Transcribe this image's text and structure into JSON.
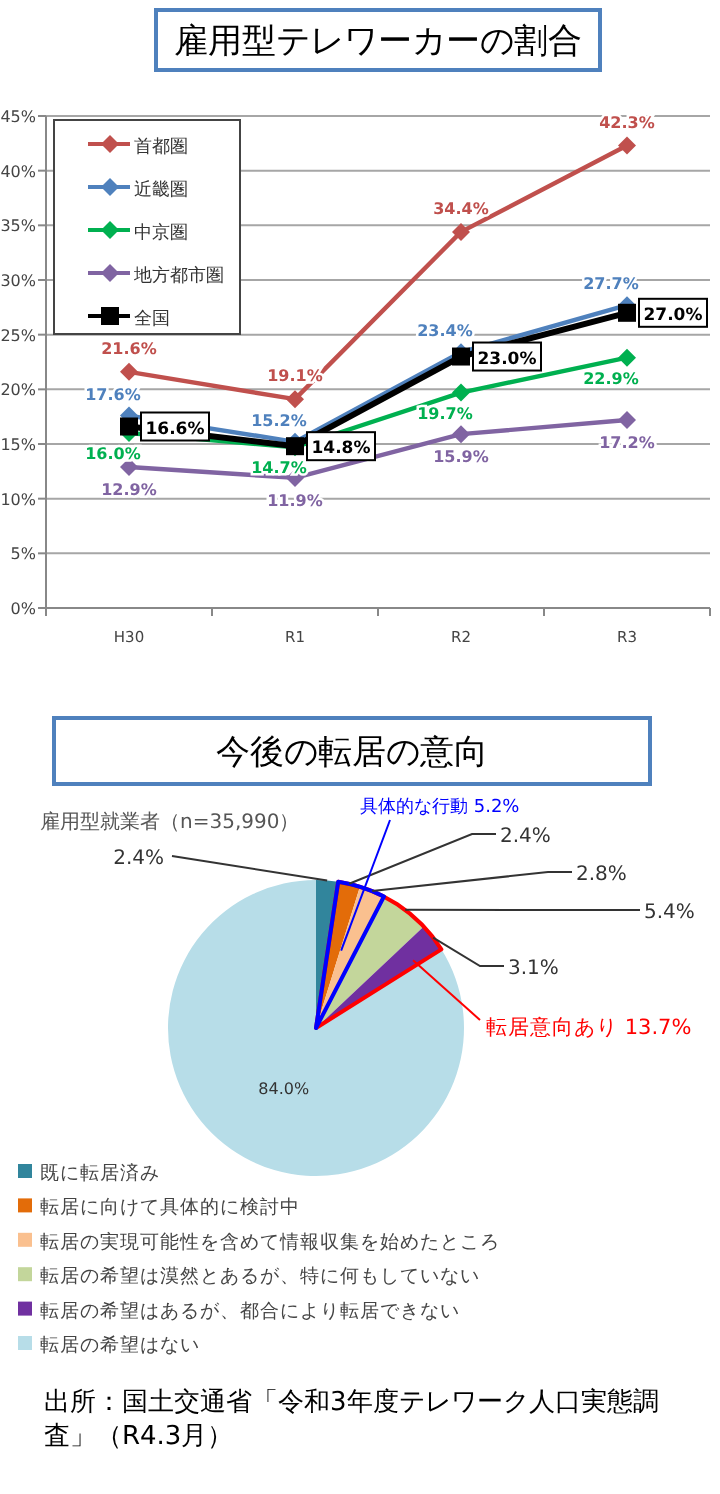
{
  "chart_data": [
    {
      "type": "line",
      "title": "雇用型テレワーカーの割合",
      "categories": [
        "H30",
        "R1",
        "R2",
        "R3"
      ],
      "series": [
        {
          "name": "首都圏",
          "color": "#c0504d",
          "marker": "diamond",
          "values": [
            21.6,
            19.1,
            34.4,
            42.3
          ],
          "value_labels": [
            "21.6%",
            "19.1%",
            "34.4%",
            "42.3%"
          ]
        },
        {
          "name": "近畿圏",
          "color": "#4f81bd",
          "marker": "diamond",
          "values": [
            17.6,
            15.2,
            23.4,
            27.7
          ],
          "value_labels": [
            "17.6%",
            "15.2%",
            "23.4%",
            "27.7%"
          ]
        },
        {
          "name": "中京圏",
          "color": "#00b050",
          "marker": "diamond",
          "values": [
            16.0,
            14.7,
            19.7,
            22.9
          ],
          "value_labels": [
            "16.0%",
            "14.7%",
            "19.7%",
            "22.9%"
          ]
        },
        {
          "name": "地方都市圏",
          "color": "#8064a2",
          "marker": "diamond",
          "values": [
            12.9,
            11.9,
            15.9,
            17.2
          ],
          "value_labels": [
            "12.9%",
            "11.9%",
            "15.9%",
            "17.2%"
          ]
        },
        {
          "name": "全国",
          "color": "#000000",
          "marker": "square",
          "values": [
            16.6,
            14.8,
            23.0,
            27.0
          ],
          "value_labels": [
            "16.6%",
            "14.8%",
            "23.0%",
            "27.0%"
          ]
        }
      ],
      "ylim": [
        0,
        45
      ],
      "yticks": [
        {
          "value": 0,
          "label": "0%"
        },
        {
          "value": 5,
          "label": "5%"
        },
        {
          "value": 10,
          "label": "10%"
        },
        {
          "value": 15,
          "label": "15%"
        },
        {
          "value": 20,
          "label": "20%"
        },
        {
          "value": 25,
          "label": "25%"
        },
        {
          "value": 30,
          "label": "30%"
        },
        {
          "value": 35,
          "label": "35%"
        },
        {
          "value": 40,
          "label": "40%"
        },
        {
          "value": 45,
          "label": "45%"
        }
      ],
      "grid": "y",
      "legend": "top left"
    },
    {
      "type": "pie",
      "title": "今後の転居の意向",
      "subtitle": "雇用型就業者（n=35,990）",
      "categories": [
        "既に転居済み",
        "転居に向けて具体的に検討中",
        "転居の実現可能性を含めて情報収集を始めたところ",
        "転居の希望は漠然とあるが、特に何もしていない",
        "転居の希望はあるが、都合により転居できない",
        "転居の希望はない"
      ],
      "values": [
        2.4,
        2.4,
        2.8,
        5.4,
        3.1,
        84.0
      ],
      "value_labels": [
        "2.4%",
        "2.4%",
        "2.8%",
        "5.4%",
        "3.1%",
        "84.0%"
      ],
      "colors": [
        "#31859c",
        "#e36c09",
        "#fac08f",
        "#c3d69b",
        "#7030a0",
        "#b7dde8"
      ],
      "legend": "bottom",
      "annotations": [
        "具体的な行動  5.2%",
        "転居意向あり  13.7%",
        "出所：国土交通省「令和3年度テレワーク人口実態調査」（R4.3月）"
      ]
    }
  ]
}
